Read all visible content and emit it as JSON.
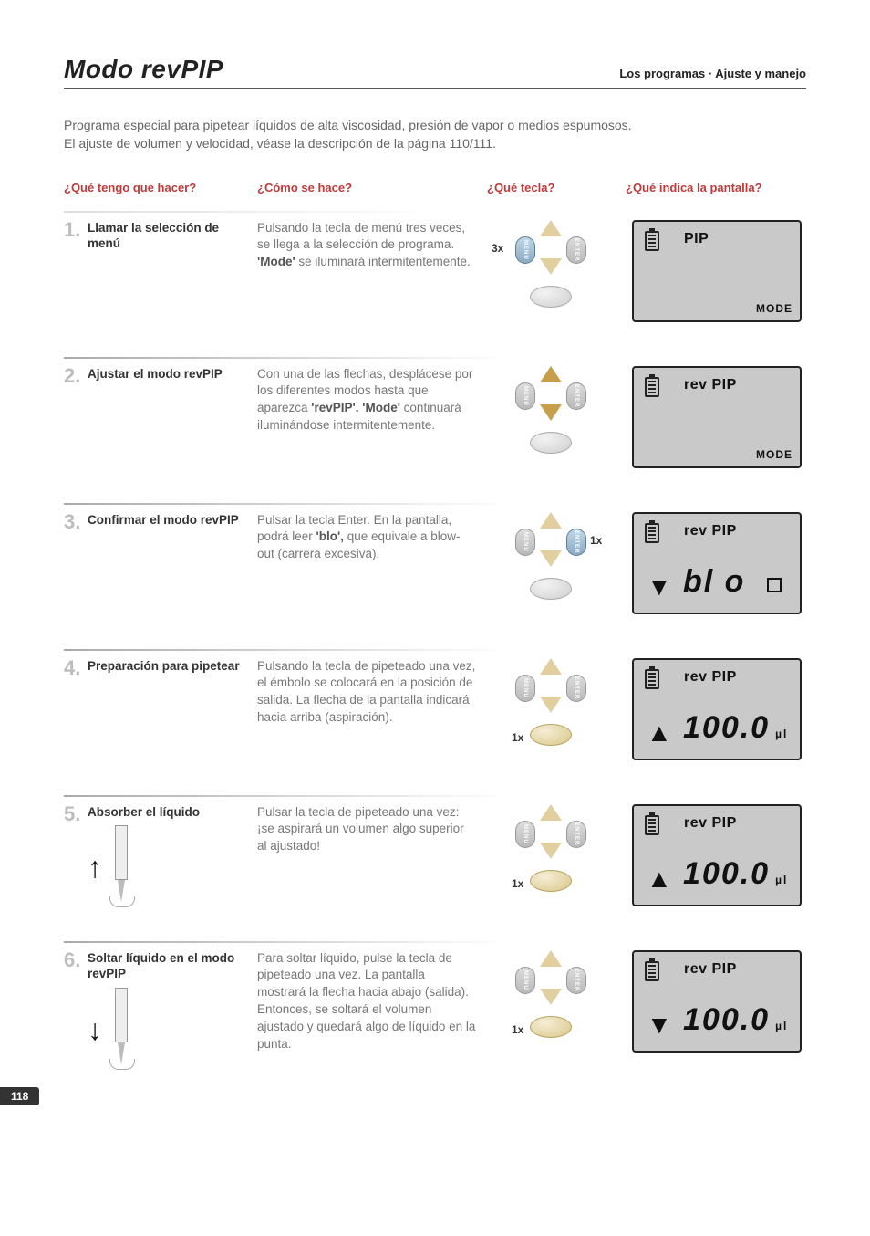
{
  "page": {
    "title": "Modo revPIP",
    "section": "Los programas · Ajuste y manejo",
    "page_number": "118"
  },
  "intro_lines": {
    "l1": "Programa especial para pipetear líquidos de alta viscosidad, presión de vapor o medios espumosos.",
    "l2": "El ajuste de volumen y velocidad, véase la descripción de la página 110/111."
  },
  "col_headers": {
    "c1": "¿Qué tengo que hacer?",
    "c2": "¿Cómo se hace?",
    "c3": "¿Qué tecla?",
    "c4": "¿Qué indica la pantalla?"
  },
  "steps": [
    {
      "num": "1.",
      "title": "Llamar la selección de menú",
      "desc_pre": "Pulsando la tecla de menú tres veces, se llega a la selección de programa. ",
      "desc_bold": "'Mode'",
      "desc_post": " se iluminará intermitentemente.",
      "key_label": "3x",
      "key_label_pos": "left",
      "active_menu": true,
      "active_enter": false,
      "active_arrows": false,
      "active_oval": false,
      "lcd_title": "PIP",
      "lcd_bottom": "MODE",
      "lcd_big": "",
      "lcd_arrow": "",
      "lcd_box": false
    },
    {
      "num": "2.",
      "title": "Ajustar el modo revPIP",
      "desc_pre": "Con una de las flechas, desplácese por los diferentes modos hasta que aparezca ",
      "desc_bold": "'revPIP'. 'Mode'",
      "desc_post": " continuará iluminándose intermitentemente.",
      "key_label": "",
      "key_label_pos": "",
      "active_menu": false,
      "active_enter": false,
      "active_arrows": true,
      "active_oval": false,
      "lcd_title": "rev PIP",
      "lcd_bottom": "MODE",
      "lcd_big": "",
      "lcd_arrow": "",
      "lcd_box": false
    },
    {
      "num": "3.",
      "title": "Confirmar el modo revPIP",
      "desc_pre": "Pulsar la tecla Enter. En la pantalla, podrá leer ",
      "desc_bold": "'blo',",
      "desc_post": " que equivale a blow-out (carrera excesiva).",
      "key_label": "1x",
      "key_label_pos": "right",
      "active_menu": false,
      "active_enter": true,
      "active_arrows": false,
      "active_oval": false,
      "lcd_title": "rev PIP",
      "lcd_bottom": "",
      "lcd_big": "bl o",
      "lcd_arrow": "▼",
      "lcd_box": true
    },
    {
      "num": "4.",
      "title": "Preparación para pipetear",
      "desc_pre": "Pulsando la tecla de pipeteado una vez, el émbolo se colocará en la posición de salida. La flecha de la pantalla indicará hacia arriba (aspiración).",
      "desc_bold": "",
      "desc_post": "",
      "key_label": "1x",
      "key_label_pos": "bottom",
      "active_menu": false,
      "active_enter": false,
      "active_arrows": false,
      "active_oval": true,
      "lcd_title": "rev PIP",
      "lcd_bottom": "",
      "lcd_big": "100.0",
      "lcd_unit": "µl",
      "lcd_arrow": "▲",
      "lcd_box": false
    },
    {
      "num": "5.",
      "title": "Absorber el líquido",
      "desc_pre": "Pulsar la tecla de pipeteado una vez: ¡se aspirará un volumen algo superior al ajustado!",
      "desc_bold": "",
      "desc_post": "",
      "key_label": "1x",
      "key_label_pos": "bottom",
      "active_menu": false,
      "active_enter": false,
      "active_arrows": false,
      "active_oval": true,
      "pipette_arrow": "↑",
      "lcd_title": "rev PIP",
      "lcd_bottom": "",
      "lcd_big": "100.0",
      "lcd_unit": "µl",
      "lcd_arrow": "▲",
      "lcd_box": false
    },
    {
      "num": "6.",
      "title": "Soltar líquido en el modo revPIP",
      "desc_pre": "Para soltar líquido, pulse la tecla de pipeteado una vez. La pantalla mostrará la flecha hacia abajo (salida). Entonces, se soltará el volumen ajustado y quedará algo de líquido en la punta.",
      "desc_bold": "",
      "desc_post": "",
      "key_label": "1x",
      "key_label_pos": "bottom",
      "active_menu": false,
      "active_enter": false,
      "active_arrows": false,
      "active_oval": true,
      "pipette_arrow": "↓",
      "lcd_title": "rev PIP",
      "lcd_bottom": "",
      "lcd_big": "100.0",
      "lcd_unit": "µl",
      "lcd_arrow": "▼",
      "lcd_box": false
    }
  ],
  "button_labels": {
    "menu": "MENU",
    "enter": "ENTER"
  },
  "colors": {
    "heading_red": "#c23b3b",
    "stepnum_gray": "#bdbdbd",
    "body_gray": "#777777",
    "lcd_bg": "#c9c9c9",
    "arrow_sand": "#e2cfa0",
    "arrow_sand_active": "#c79f4a"
  }
}
